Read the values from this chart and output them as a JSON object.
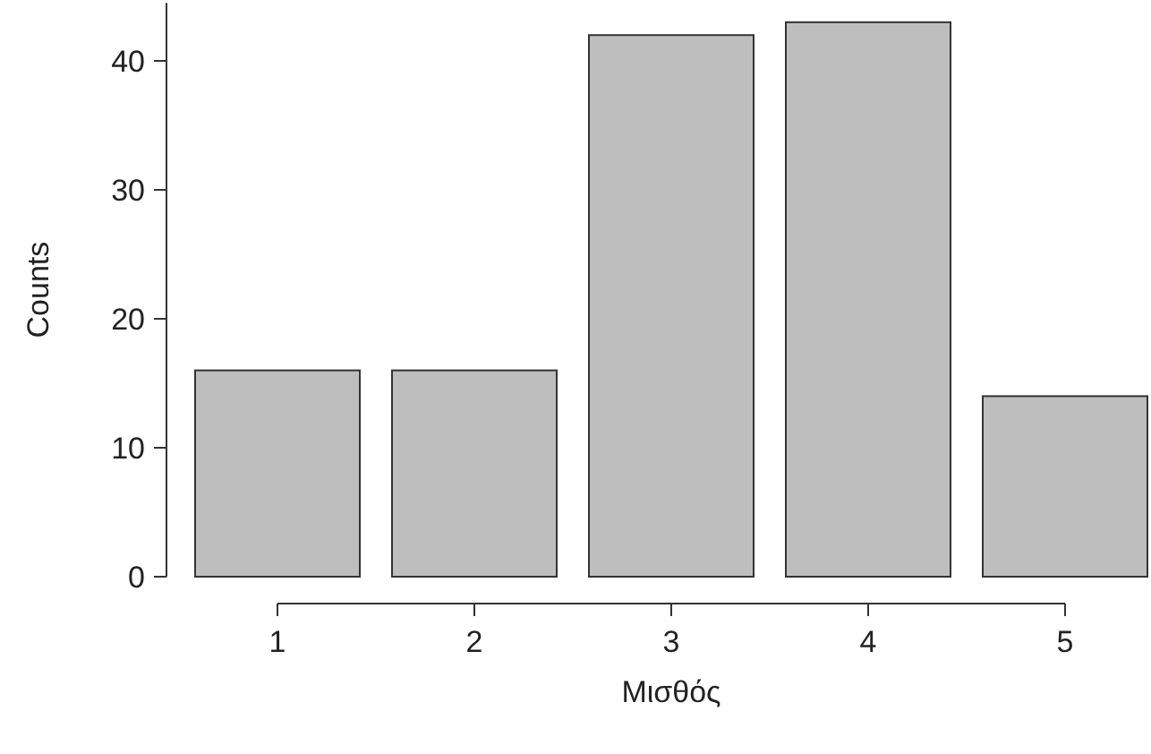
{
  "chart_data": {
    "type": "bar",
    "xlabel": "Μισθός",
    "ylabel": "Counts",
    "categories": [
      "1",
      "2",
      "3",
      "4",
      "5"
    ],
    "values": [
      16,
      16,
      42,
      43,
      14
    ],
    "color": "#bebebe",
    "ylim": [
      0,
      44.5
    ],
    "yticks": [
      0,
      10,
      20,
      30,
      40
    ],
    "grid": false
  }
}
